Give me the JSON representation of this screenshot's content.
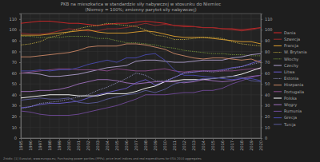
{
  "chart_data": {
    "type": "line",
    "title": "PKB na mieszkańca w standardzie siły nabywczej w stosunku do Niemiec",
    "subtitle": "(Niemcy = 100%; zmienny parytet siły nabywczej)",
    "annotations": [
      "Źródło: [1] Eurostat, www.europa.eu; Purchasing power parities (PPPs), price level indices and real expenditures for ESA 2010 aggregates"
    ],
    "x": [
      1995,
      1996,
      1997,
      1998,
      1999,
      2000,
      2001,
      2002,
      2003,
      2004,
      2005,
      2006,
      2007,
      2008,
      2009,
      2010,
      2011,
      2012,
      2013,
      2014,
      2015,
      2016,
      2017,
      2018,
      2019,
      2020
    ],
    "xlim": [
      1995,
      2020
    ],
    "xticks": [
      1995,
      1996,
      1997,
      1998,
      1999,
      2000,
      2001,
      2002,
      2003,
      2004,
      2005,
      2006,
      2007,
      2008,
      2009,
      2010,
      2011,
      2012,
      2013,
      2014,
      2015,
      2016,
      2017,
      2018,
      2019,
      2020
    ],
    "ylim": [
      0,
      115
    ],
    "yticks": [
      0,
      10,
      20,
      30,
      40,
      50,
      60,
      70,
      80,
      90,
      100,
      110
    ],
    "grid": true,
    "legend": "right",
    "series": [
      {
        "name": "Dania",
        "color": "#d62728",
        "line_style": "solid",
        "values": [
          106,
          107,
          108,
          108,
          107,
          106,
          106,
          105,
          104,
          105,
          106,
          106,
          107,
          108,
          107,
          106,
          104,
          103,
          103,
          102,
          102,
          101,
          101,
          100,
          101,
          102
        ]
      },
      {
        "name": "Szwecja",
        "color": "#9a2a2a",
        "line_style": "solid",
        "values": [
          97,
          96,
          96,
          97,
          99,
          101,
          100,
          99,
          99,
          101,
          101,
          102,
          104,
          106,
          104,
          105,
          104,
          104,
          103,
          102,
          102,
          101,
          100,
          99,
          100,
          102
        ]
      },
      {
        "name": "Francja",
        "color": "#e0a030",
        "line_style": "solid",
        "values": [
          95,
          95,
          95,
          96,
          97,
          98,
          99,
          100,
          98,
          97,
          97,
          97,
          98,
          99,
          98,
          96,
          94,
          93,
          93,
          93,
          92,
          91,
          90,
          89,
          89,
          87
        ]
      },
      {
        "name": "W. Brytania",
        "color": "#c8b040",
        "line_style": "dotted",
        "values": [
          86,
          87,
          89,
          93,
          95,
          98,
          101,
          103,
          104,
          106,
          105,
          104,
          103,
          100,
          95,
          94,
          91,
          91,
          92,
          93,
          93,
          92,
          89,
          87,
          86,
          85
        ]
      },
      {
        "name": "Włochy",
        "color": "#7a9a3a",
        "line_style": "dotted",
        "values": [
          94,
          94,
          93,
          93,
          93,
          94,
          94,
          94,
          92,
          92,
          90,
          88,
          88,
          87,
          86,
          84,
          83,
          81,
          80,
          79,
          78,
          78,
          77,
          77,
          76,
          76
        ]
      },
      {
        "name": "Czechy",
        "color": "#b0a0d0",
        "line_style": "solid",
        "values": [
          60,
          60,
          59,
          57,
          57,
          58,
          59,
          61,
          63,
          65,
          66,
          67,
          71,
          72,
          72,
          71,
          70,
          70,
          71,
          72,
          72,
          72,
          74,
          75,
          77,
          78
        ]
      },
      {
        "name": "Litwa",
        "color": "#6a5acd",
        "line_style": "solid",
        "values": [
          28,
          29,
          31,
          32,
          32,
          33,
          34,
          37,
          40,
          42,
          44,
          46,
          51,
          54,
          49,
          52,
          56,
          60,
          61,
          62,
          62,
          63,
          65,
          66,
          69,
          72
        ]
      },
      {
        "name": "Estonia",
        "color": "#9090c0",
        "line_style": "dotted",
        "values": [
          27,
          29,
          32,
          33,
          34,
          36,
          38,
          40,
          44,
          47,
          51,
          55,
          60,
          58,
          53,
          53,
          56,
          60,
          61,
          62,
          61,
          62,
          64,
          66,
          68,
          70
        ]
      },
      {
        "name": "Hiszpania",
        "color": "#cc8866",
        "line_style": "solid",
        "values": [
          75,
          75,
          76,
          77,
          78,
          79,
          81,
          84,
          85,
          85,
          85,
          87,
          87,
          86,
          84,
          82,
          78,
          76,
          74,
          73,
          74,
          74,
          73,
          72,
          73,
          70
        ]
      },
      {
        "name": "Portugalia",
        "color": "#8a4a8a",
        "line_style": "solid",
        "values": [
          60,
          61,
          62,
          63,
          64,
          64,
          63,
          63,
          63,
          62,
          64,
          63,
          62,
          62,
          63,
          64,
          62,
          61,
          62,
          62,
          62,
          62,
          62,
          63,
          64,
          64
        ]
      },
      {
        "name": "Polska",
        "color": "#ffffff",
        "line_style": "solid",
        "values": [
          37,
          38,
          39,
          40,
          40,
          40,
          39,
          39,
          39,
          41,
          41,
          41,
          43,
          46,
          48,
          52,
          53,
          54,
          54,
          54,
          55,
          56,
          57,
          59,
          62,
          65
        ]
      },
      {
        "name": "Węgry",
        "color": "#a070c0",
        "line_style": "solid",
        "values": [
          43,
          43,
          44,
          44,
          45,
          47,
          50,
          52,
          54,
          54,
          53,
          51,
          50,
          51,
          52,
          52,
          52,
          51,
          52,
          54,
          53,
          52,
          53,
          55,
          57,
          58
        ]
      },
      {
        "name": "Rumunia",
        "color": "#704a9a",
        "line_style": "solid",
        "values": [
          25,
          24,
          22,
          21,
          21,
          21,
          22,
          24,
          26,
          28,
          30,
          33,
          36,
          40,
          40,
          40,
          41,
          42,
          42,
          44,
          44,
          46,
          50,
          53,
          56,
          58
        ]
      },
      {
        "name": "Grecja",
        "color": "#4a4ab0",
        "line_style": "solid",
        "values": [
          62,
          62,
          63,
          62,
          63,
          63,
          65,
          68,
          70,
          72,
          70,
          74,
          74,
          77,
          78,
          72,
          63,
          58,
          58,
          57,
          56,
          55,
          54,
          55,
          55,
          53
        ]
      },
      {
        "name": "Turcja",
        "color": "#5a5a9a",
        "line_style": "solid",
        "values": [
          35,
          36,
          37,
          36,
          36,
          37,
          33,
          32,
          33,
          36,
          38,
          40,
          41,
          44,
          42,
          45,
          50,
          52,
          53,
          55,
          55,
          56,
          57,
          56,
          53,
          52
        ]
      }
    ]
  }
}
